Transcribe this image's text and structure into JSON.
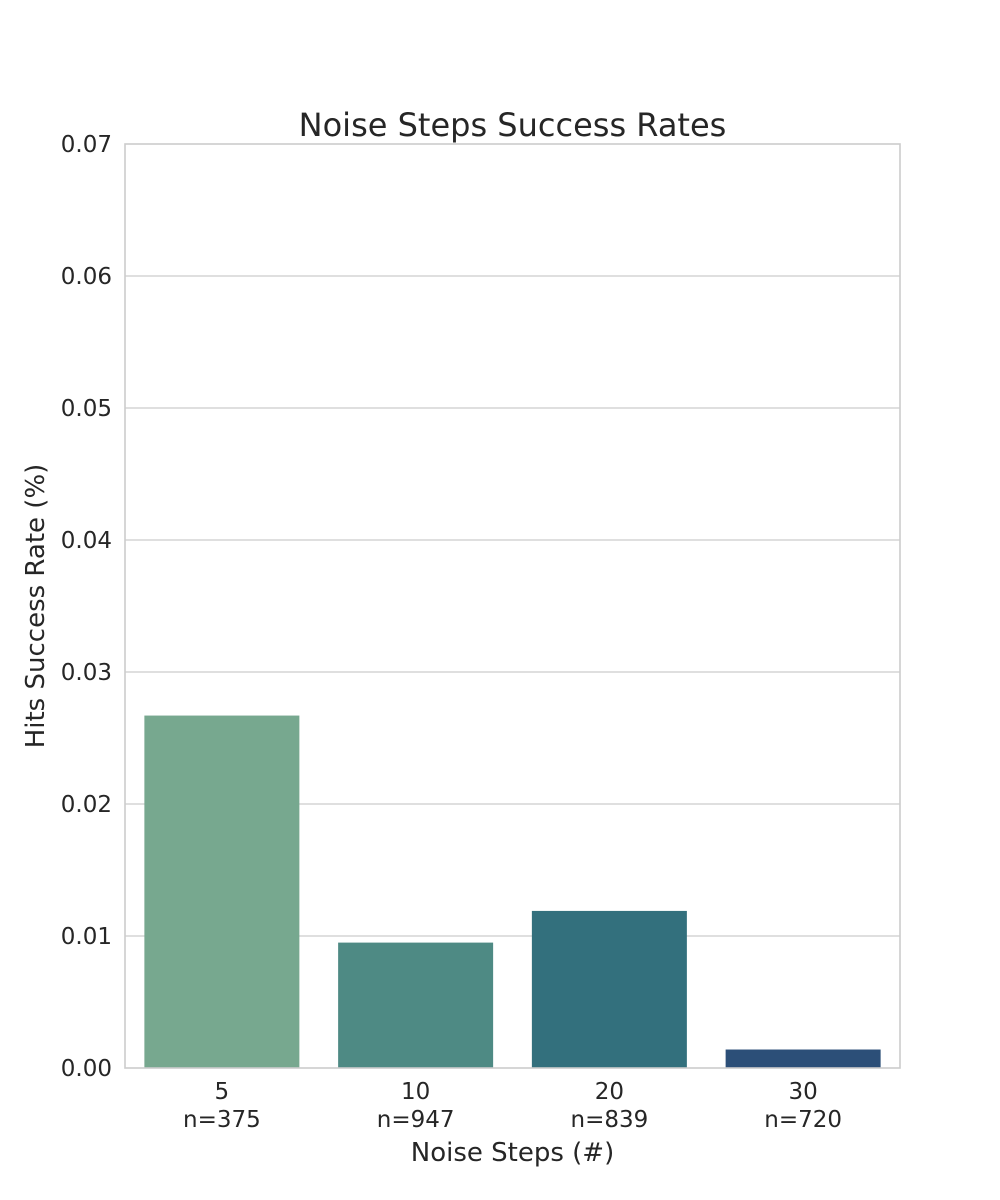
{
  "chart_data": {
    "type": "bar",
    "title": "Noise Steps Success Rates",
    "xlabel": "Noise Steps (#)",
    "ylabel": "Hits Success Rate (%)",
    "categories": [
      "5",
      "10",
      "20",
      "30"
    ],
    "sample_sizes": [
      "n=375",
      "n=947",
      "n=839",
      "n=720"
    ],
    "values": [
      0.0267,
      0.0095,
      0.0119,
      0.0014
    ],
    "colors": [
      "#77a88f",
      "#4e8a84",
      "#33707d",
      "#2c4f78"
    ],
    "ylim": [
      0,
      0.07
    ],
    "yticks": [
      0.0,
      0.01,
      0.02,
      0.03,
      0.04,
      0.05,
      0.06,
      0.07
    ],
    "ytick_labels": [
      "0.00",
      "0.01",
      "0.02",
      "0.03",
      "0.04",
      "0.05",
      "0.06",
      "0.07"
    ],
    "grid": "horizontal",
    "legend": "none"
  }
}
